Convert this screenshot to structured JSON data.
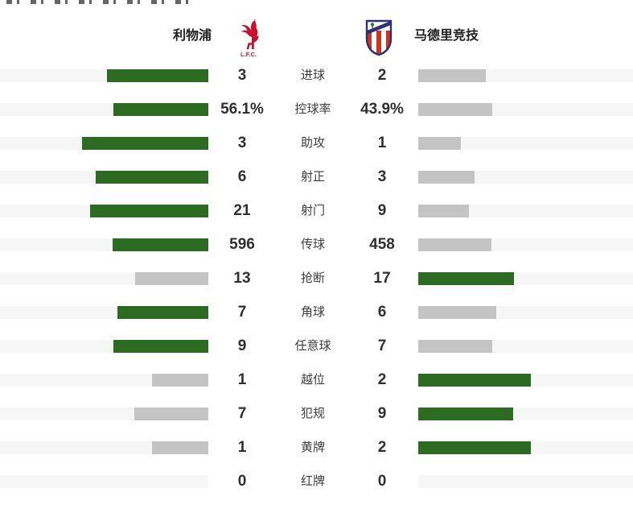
{
  "header": {
    "home_team": "利物浦",
    "away_team": "马德里竞技",
    "home_logo": "liverpool-crest",
    "home_logo_text": "L.F.C.",
    "away_logo": "atletico-madrid-crest"
  },
  "colors": {
    "leader_bar": "#2e6b22",
    "trailing_bar": "#c4c4c4",
    "bar_track": "#f6f6f6",
    "value_text": "#2f2f2f",
    "label_text": "#3d3d3d",
    "liverpool_red": "#c8102e",
    "atletico_red": "#cb3524",
    "atletico_blue": "#2a3272"
  },
  "stats": [
    {
      "label": "进球",
      "home": "3",
      "away": "2",
      "home_num": 3,
      "away_num": 2
    },
    {
      "label": "控球率",
      "home": "56.1%",
      "away": "43.9%",
      "home_num": 56.1,
      "away_num": 43.9
    },
    {
      "label": "助攻",
      "home": "3",
      "away": "1",
      "home_num": 3,
      "away_num": 1
    },
    {
      "label": "射正",
      "home": "6",
      "away": "3",
      "home_num": 6,
      "away_num": 3
    },
    {
      "label": "射门",
      "home": "21",
      "away": "9",
      "home_num": 21,
      "away_num": 9
    },
    {
      "label": "传球",
      "home": "596",
      "away": "458",
      "home_num": 596,
      "away_num": 458
    },
    {
      "label": "抢断",
      "home": "13",
      "away": "17",
      "home_num": 13,
      "away_num": 17
    },
    {
      "label": "角球",
      "home": "7",
      "away": "6",
      "home_num": 7,
      "away_num": 6
    },
    {
      "label": "任意球",
      "home": "9",
      "away": "7",
      "home_num": 9,
      "away_num": 7
    },
    {
      "label": "越位",
      "home": "1",
      "away": "2",
      "home_num": 1,
      "away_num": 2
    },
    {
      "label": "犯规",
      "home": "7",
      "away": "9",
      "home_num": 7,
      "away_num": 9
    },
    {
      "label": "黄牌",
      "home": "1",
      "away": "2",
      "home_num": 1,
      "away_num": 2
    },
    {
      "label": "红牌",
      "home": "0",
      "away": "0",
      "home_num": 0,
      "away_num": 0
    }
  ],
  "chart_data": {
    "type": "bar",
    "title": "",
    "categories": [
      "进球",
      "控球率",
      "助攻",
      "射正",
      "射门",
      "传球",
      "抢断",
      "角球",
      "任意球",
      "越位",
      "犯规",
      "黄牌",
      "红牌"
    ],
    "series": [
      {
        "name": "利物浦",
        "values": [
          3,
          56.1,
          3,
          6,
          21,
          596,
          13,
          7,
          9,
          1,
          7,
          1,
          0
        ]
      },
      {
        "name": "马德里竞技",
        "values": [
          2,
          43.9,
          1,
          3,
          9,
          458,
          17,
          6,
          7,
          2,
          9,
          2,
          0
        ]
      }
    ],
    "layout": {
      "orientation": "horizontal",
      "paired_bars": true,
      "bar_scale": "pair widths proportional to value share of row total",
      "leader_color": "#2e6b22",
      "trailing_color": "#c4c4c4",
      "legend_position": "top"
    }
  }
}
